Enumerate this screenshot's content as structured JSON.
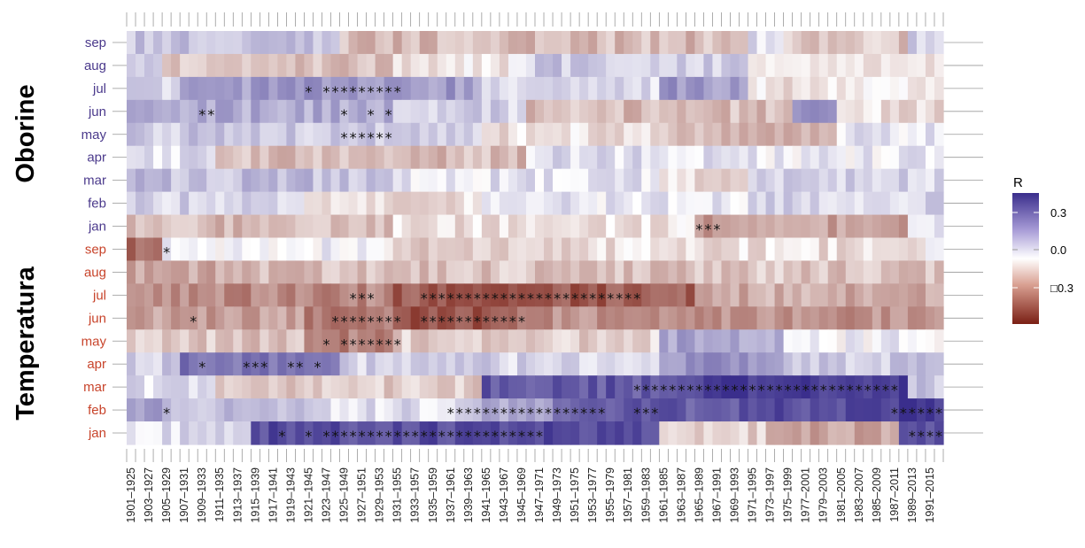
{
  "chart_data": {
    "type": "heatmap",
    "groups": [
      {
        "label": "Oborine",
        "color": "#4b3a8c",
        "rows": [
          "sep",
          "aug",
          "jul",
          "jun",
          "may",
          "apr",
          "mar",
          "feb",
          "jan"
        ]
      },
      {
        "label": "Temperatura",
        "color": "#c8442b",
        "rows": [
          "sep",
          "aug",
          "jul",
          "jun",
          "may",
          "apr",
          "mar",
          "feb",
          "jan"
        ]
      }
    ],
    "x_tick_labels": [
      "1901–1925",
      "1903–1927",
      "1905–1929",
      "1907–1931",
      "1909–1933",
      "1911–1935",
      "1913–1937",
      "1915–1939",
      "1917–1941",
      "1919–1943",
      "1921–1945",
      "1923–1947",
      "1925–1949",
      "1927–1951",
      "1929–1953",
      "1931–1955",
      "1933–1957",
      "1935–1959",
      "1937–1961",
      "1939–1963",
      "1941–1965",
      "1943–1967",
      "1945–1969",
      "1947–1971",
      "1949–1973",
      "1951–1975",
      "1953–1977",
      "1955–1979",
      "1957–1981",
      "1959–1983",
      "1961–1985",
      "1963–1987",
      "1965–1989",
      "1967–1991",
      "1969–1993",
      "1971–1995",
      "1973–1997",
      "1975–1999",
      "1977–2001",
      "1979–2003",
      "1981–2005",
      "1983–2007",
      "1985–2009",
      "1987–2011",
      "1989–2013",
      "1991–2015"
    ],
    "n_windows": 92,
    "legend": {
      "title": "R",
      "labels": [
        "0.3",
        "0.0",
        "□0.3"
      ],
      "label_values": [
        0.3,
        0.0,
        -0.3
      ],
      "placement": "right",
      "colors": {
        "negative": "#7a1f14",
        "zero": "#ffffff",
        "positive": "#3a2e8c"
      }
    },
    "segments": [
      [
        [
          0,
          24,
          0.12
        ],
        [
          24,
          70,
          -0.12
        ],
        [
          70,
          74,
          0.05
        ],
        [
          74,
          88,
          -0.1
        ],
        [
          88,
          92,
          0.1
        ]
      ],
      [
        [
          0,
          4,
          0.12
        ],
        [
          4,
          30,
          -0.1
        ],
        [
          30,
          45,
          -0.03
        ],
        [
          45,
          70,
          0.1
        ],
        [
          70,
          92,
          -0.03
        ]
      ],
      [
        [
          0,
          6,
          0.08
        ],
        [
          6,
          40,
          0.2
        ],
        [
          40,
          60,
          0.06
        ],
        [
          60,
          70,
          0.2
        ],
        [
          70,
          92,
          -0.04
        ]
      ],
      [
        [
          0,
          30,
          0.16
        ],
        [
          30,
          45,
          0.08
        ],
        [
          45,
          75,
          -0.12
        ],
        [
          75,
          80,
          0.2
        ],
        [
          80,
          92,
          -0.05
        ]
      ],
      [
        [
          0,
          40,
          0.1
        ],
        [
          40,
          60,
          -0.05
        ],
        [
          60,
          80,
          -0.12
        ],
        [
          80,
          92,
          0.05
        ]
      ],
      [
        [
          0,
          10,
          0.05
        ],
        [
          10,
          45,
          -0.12
        ],
        [
          45,
          70,
          0.06
        ],
        [
          70,
          92,
          0.03
        ]
      ],
      [
        [
          0,
          30,
          0.12
        ],
        [
          30,
          60,
          0.05
        ],
        [
          60,
          70,
          -0.05
        ],
        [
          70,
          92,
          0.08
        ]
      ],
      [
        [
          0,
          20,
          0.08
        ],
        [
          20,
          40,
          -0.05
        ],
        [
          40,
          70,
          0.04
        ],
        [
          70,
          92,
          0.08
        ]
      ],
      [
        [
          0,
          30,
          -0.12
        ],
        [
          30,
          64,
          -0.05
        ],
        [
          64,
          88,
          -0.18
        ],
        [
          88,
          92,
          0.05
        ]
      ],
      [
        [
          0,
          4,
          -0.3
        ],
        [
          4,
          30,
          0.02
        ],
        [
          30,
          50,
          -0.08
        ],
        [
          50,
          90,
          -0.05
        ],
        [
          90,
          92,
          0.01
        ]
      ],
      [
        [
          0,
          10,
          -0.15
        ],
        [
          10,
          40,
          -0.12
        ],
        [
          40,
          92,
          -0.1
        ]
      ],
      [
        [
          0,
          30,
          -0.22
        ],
        [
          30,
          64,
          -0.32
        ],
        [
          64,
          92,
          -0.15
        ]
      ],
      [
        [
          0,
          20,
          -0.18
        ],
        [
          20,
          30,
          -0.26
        ],
        [
          30,
          44,
          -0.34
        ],
        [
          44,
          92,
          -0.2
        ]
      ],
      [
        [
          0,
          20,
          -0.1
        ],
        [
          20,
          30,
          -0.24
        ],
        [
          30,
          60,
          -0.08
        ],
        [
          60,
          74,
          0.18
        ],
        [
          74,
          92,
          0.02
        ]
      ],
      [
        [
          0,
          6,
          0.1
        ],
        [
          6,
          24,
          0.28
        ],
        [
          24,
          60,
          0.08
        ],
        [
          60,
          74,
          0.22
        ],
        [
          74,
          92,
          0.1
        ]
      ],
      [
        [
          0,
          10,
          0.06
        ],
        [
          10,
          40,
          -0.08
        ],
        [
          40,
          64,
          0.35
        ],
        [
          64,
          88,
          0.42
        ],
        [
          88,
          92,
          0.12
        ]
      ],
      [
        [
          0,
          4,
          0.2
        ],
        [
          4,
          20,
          0.12
        ],
        [
          20,
          40,
          0.06
        ],
        [
          40,
          48,
          0.18
        ],
        [
          48,
          72,
          0.35
        ],
        [
          72,
          87,
          0.38
        ],
        [
          87,
          92,
          0.42
        ]
      ],
      [
        [
          0,
          14,
          0.06
        ],
        [
          14,
          60,
          0.38
        ],
        [
          60,
          72,
          -0.08
        ],
        [
          72,
          87,
          -0.16
        ],
        [
          87,
          92,
          0.38
        ]
      ]
    ],
    "significance": [
      [],
      [],
      [
        20,
        22,
        23,
        24,
        25,
        26,
        27,
        28,
        29,
        30
      ],
      [
        8,
        9,
        24,
        27,
        29
      ],
      [
        24,
        25,
        26,
        27,
        28,
        29
      ],
      [],
      [],
      [],
      [
        64,
        65,
        66
      ],
      [
        4
      ],
      [],
      [
        25,
        26,
        27,
        33,
        34,
        35,
        36,
        37,
        38,
        39,
        40,
        41,
        42,
        43,
        44,
        45,
        46,
        47,
        48,
        49,
        50,
        51,
        52,
        53,
        54,
        55,
        56,
        57
      ],
      [
        7,
        23,
        24,
        25,
        26,
        27,
        28,
        29,
        30,
        33,
        34,
        35,
        36,
        37,
        38,
        39,
        40,
        41,
        42,
        43,
        44
      ],
      [
        22,
        24,
        25,
        26,
        27,
        28,
        29,
        30
      ],
      [
        8,
        13,
        14,
        15,
        18,
        19,
        21
      ],
      [
        57,
        58,
        59,
        60,
        61,
        62,
        63,
        64,
        65,
        66,
        67,
        68,
        69,
        70,
        71,
        72,
        73,
        74,
        75,
        76,
        77,
        78,
        79,
        80,
        81,
        82,
        83,
        84,
        85,
        86
      ],
      [
        4,
        36,
        37,
        38,
        39,
        40,
        41,
        42,
        43,
        44,
        45,
        46,
        47,
        48,
        49,
        50,
        51,
        52,
        53,
        57,
        58,
        59,
        86,
        87,
        88,
        89,
        90,
        91
      ],
      [
        17,
        20,
        22,
        23,
        24,
        25,
        26,
        27,
        28,
        29,
        30,
        31,
        32,
        33,
        34,
        35,
        36,
        37,
        38,
        39,
        40,
        41,
        42,
        43,
        44,
        45,
        46,
        88,
        89,
        90,
        91
      ]
    ]
  }
}
